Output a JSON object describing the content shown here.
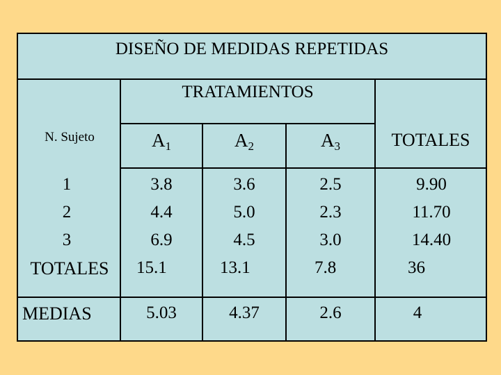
{
  "title": "DISEÑO DE MEDIDAS REPETIDAS",
  "group_header": "TRATAMIENTOS",
  "columns": {
    "subject": "N. Sujeto",
    "a1": {
      "base": "A",
      "sub": "1"
    },
    "a2": {
      "base": "A",
      "sub": "2"
    },
    "a3": {
      "base": "A",
      "sub": "3"
    },
    "totals": "TOTALES"
  },
  "rows": [
    {
      "subject": "1",
      "a1": "3.8",
      "a2": "3.6",
      "a3": "2.5",
      "total": "9.90"
    },
    {
      "subject": "2",
      "a1": "4.4",
      "a2": "5.0",
      "a3": "2.3",
      "total": "11.70"
    },
    {
      "subject": "3",
      "a1": "6.9",
      "a2": "4.5",
      "a3": "3.0",
      "total": "14.40"
    }
  ],
  "totals_row": {
    "label": "TOTALES",
    "a1": "15.1",
    "a2": "13.1",
    "a3": "7.8",
    "total": "36"
  },
  "means_row": {
    "label": "MEDIAS",
    "a1": "5.03",
    "a2": "4.37",
    "a3": "2.6",
    "total": "4"
  },
  "colors": {
    "background": "#fed98a",
    "table": "#bcdfe1",
    "border": "#000000"
  }
}
